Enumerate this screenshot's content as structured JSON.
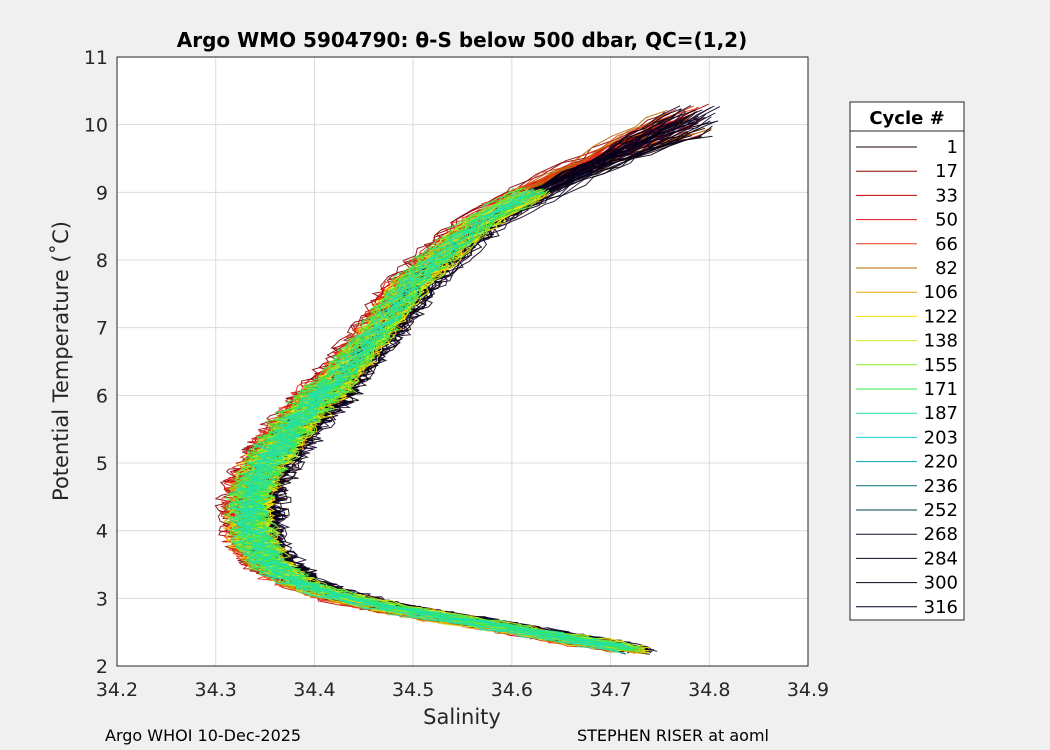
{
  "chart_data": {
    "type": "line",
    "title": "Argo WMO 5904790: θ-S below 500 dbar,  QC=(1,2)",
    "xlabel": "Salinity",
    "ylabel": "Potential Temperature (˚C)",
    "xlim": [
      34.2,
      34.9
    ],
    "ylim": [
      2,
      11
    ],
    "xticks": [
      "34.2",
      "34.3",
      "34.4",
      "34.5",
      "34.6",
      "34.7",
      "34.8",
      "34.9"
    ],
    "yticks": [
      "2",
      "3",
      "4",
      "5",
      "6",
      "7",
      "8",
      "9",
      "10",
      "11"
    ],
    "grid": true,
    "legend": {
      "title": "Cycle #",
      "placement": "right",
      "entries": [
        {
          "label": "1",
          "color": "#1a0000"
        },
        {
          "label": "17",
          "color": "#8b0000"
        },
        {
          "label": "33",
          "color": "#c40000"
        },
        {
          "label": "50",
          "color": "#e81010"
        },
        {
          "label": "66",
          "color": "#ee3a1a"
        },
        {
          "label": "82",
          "color": "#b56a00"
        },
        {
          "label": "106",
          "color": "#e8a000"
        },
        {
          "label": "122",
          "color": "#f5e400"
        },
        {
          "label": "138",
          "color": "#c8ee2a"
        },
        {
          "label": "155",
          "color": "#86e62e"
        },
        {
          "label": "171",
          "color": "#38e84a"
        },
        {
          "label": "187",
          "color": "#22e0a8"
        },
        {
          "label": "203",
          "color": "#10d2d2"
        },
        {
          "label": "220",
          "color": "#00a8b8"
        },
        {
          "label": "236",
          "color": "#007078"
        },
        {
          "label": "252",
          "color": "#004050"
        },
        {
          "label": "268",
          "color": "#1a0630"
        },
        {
          "label": "284",
          "color": "#120020"
        },
        {
          "label": "300",
          "color": "#0a0010"
        },
        {
          "label": "316",
          "color": "#000020"
        }
      ]
    },
    "profile_centerline": [
      {
        "s": 34.72,
        "t": 2.25
      },
      {
        "s": 34.66,
        "t": 2.4
      },
      {
        "s": 34.6,
        "t": 2.55
      },
      {
        "s": 34.54,
        "t": 2.7
      },
      {
        "s": 34.48,
        "t": 2.85
      },
      {
        "s": 34.42,
        "t": 3.05
      },
      {
        "s": 34.38,
        "t": 3.25
      },
      {
        "s": 34.355,
        "t": 3.5
      },
      {
        "s": 34.34,
        "t": 3.8
      },
      {
        "s": 34.335,
        "t": 4.1
      },
      {
        "s": 34.335,
        "t": 4.4
      },
      {
        "s": 34.34,
        "t": 4.7
      },
      {
        "s": 34.35,
        "t": 5.0
      },
      {
        "s": 34.365,
        "t": 5.3
      },
      {
        "s": 34.38,
        "t": 5.6
      },
      {
        "s": 34.4,
        "t": 5.9
      },
      {
        "s": 34.42,
        "t": 6.2
      },
      {
        "s": 34.44,
        "t": 6.55
      },
      {
        "s": 34.46,
        "t": 6.9
      },
      {
        "s": 34.48,
        "t": 7.3
      },
      {
        "s": 34.5,
        "t": 7.7
      },
      {
        "s": 34.53,
        "t": 8.1
      },
      {
        "s": 34.57,
        "t": 8.6
      },
      {
        "s": 34.63,
        "t": 9.1
      }
    ],
    "footer_left": "Argo WHOI 10-Dec-2025",
    "footer_right": "STEPHEN RISER at aoml"
  }
}
